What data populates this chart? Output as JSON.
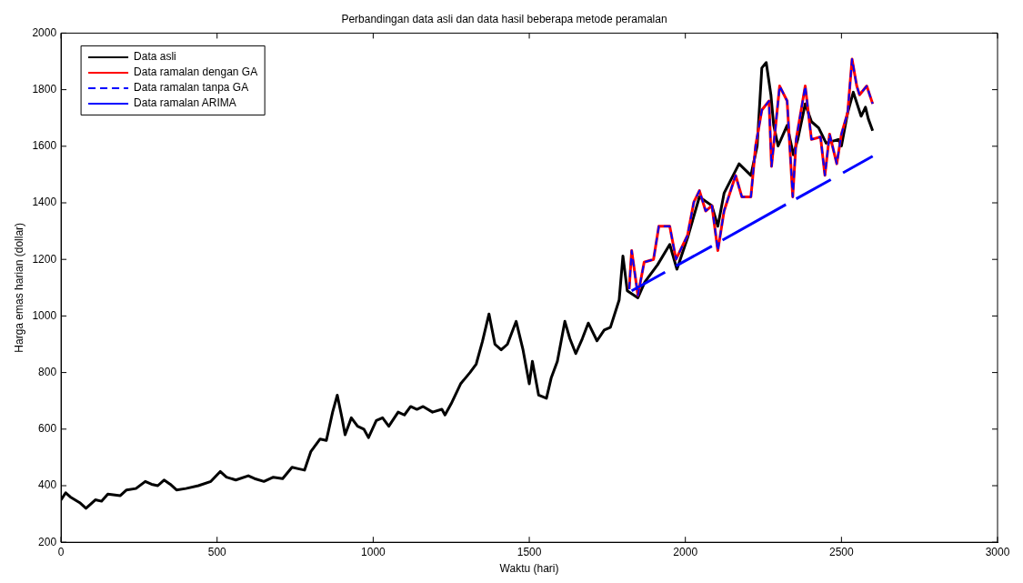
{
  "chart_data": {
    "type": "line",
    "title": "Perbandingan data asli dan data hasil beberapa metode peramalan",
    "xlabel": "Waktu (hari)",
    "ylabel": "Harga emas harian (dollar)",
    "xlim": [
      0,
      3000
    ],
    "xticks": [
      0,
      500,
      1000,
      1500,
      2000,
      2500,
      3000
    ],
    "ylim": [
      200,
      2000
    ],
    "yticks": [
      200,
      400,
      600,
      800,
      1000,
      1200,
      1400,
      1600,
      1800,
      2000
    ],
    "grid": false,
    "legend": "top left",
    "marker": "none",
    "series": [
      {
        "name": "Data asli",
        "color": "#000000",
        "line_style": "solid",
        "x": [
          0,
          15,
          30,
          60,
          80,
          110,
          130,
          150,
          190,
          210,
          240,
          270,
          290,
          310,
          330,
          350,
          370,
          400,
          440,
          480,
          510,
          530,
          560,
          600,
          620,
          650,
          680,
          710,
          740,
          760,
          780,
          800,
          830,
          850,
          870,
          885,
          900,
          910,
          930,
          950,
          970,
          985,
          1010,
          1030,
          1050,
          1080,
          1100,
          1120,
          1140,
          1160,
          1190,
          1220,
          1230,
          1250,
          1280,
          1310,
          1330,
          1350,
          1371,
          1390,
          1410,
          1430,
          1458,
          1480,
          1500,
          1510,
          1530,
          1555,
          1570,
          1590,
          1614,
          1630,
          1649,
          1670,
          1689,
          1717,
          1740,
          1760,
          1788,
          1800,
          1814,
          1848,
          1870,
          1911,
          1950,
          1973,
          2007,
          2045,
          2085,
          2104,
          2124,
          2172,
          2210,
          2230,
          2245,
          2259,
          2274,
          2283,
          2297,
          2326,
          2346,
          2360,
          2384,
          2404,
          2427,
          2451,
          2490,
          2500,
          2520,
          2538,
          2563,
          2577,
          2586,
          2600
        ],
        "values": [
          350,
          375,
          360,
          340,
          320,
          350,
          345,
          370,
          365,
          385,
          390,
          415,
          405,
          400,
          420,
          405,
          385,
          390,
          400,
          415,
          450,
          430,
          420,
          435,
          425,
          415,
          430,
          425,
          465,
          460,
          455,
          520,
          565,
          560,
          660,
          720,
          640,
          580,
          640,
          610,
          600,
          570,
          630,
          640,
          610,
          660,
          650,
          680,
          670,
          680,
          660,
          670,
          650,
          690,
          760,
          800,
          830,
          910,
          1007,
          900,
          880,
          900,
          981,
          880,
          760,
          840,
          720,
          709,
          780,
          840,
          981,
          920,
          867,
          920,
          975,
          912,
          950,
          960,
          1057,
          1212,
          1089,
          1064,
          1120,
          1181,
          1253,
          1165,
          1276,
          1421,
          1390,
          1317,
          1434,
          1538,
          1497,
          1601,
          1877,
          1896,
          1782,
          1674,
          1601,
          1674,
          1570,
          1624,
          1750,
          1687,
          1665,
          1611,
          1624,
          1601,
          1719,
          1791,
          1706,
          1738,
          1697,
          1655
        ]
      },
      {
        "name": "Data ramalan dengan GA",
        "color": "#ff0000",
        "line_style": "solid",
        "x": [
          1820,
          1828,
          1848,
          1868,
          1898,
          1915,
          1950,
          1970,
          2007,
          2027,
          2045,
          2065,
          2085,
          2104,
          2124,
          2161,
          2181,
          2210,
          2225,
          2245,
          2268,
          2276,
          2302,
          2326,
          2344,
          2355,
          2384,
          2404,
          2433,
          2447,
          2462,
          2485,
          2500,
          2520,
          2534,
          2549,
          2558,
          2581,
          2600
        ],
        "values": [
          1095,
          1231,
          1073,
          1190,
          1200,
          1317,
          1317,
          1200,
          1285,
          1402,
          1443,
          1371,
          1390,
          1231,
          1371,
          1497,
          1421,
          1421,
          1601,
          1728,
          1760,
          1529,
          1813,
          1760,
          1421,
          1624,
          1813,
          1624,
          1633,
          1497,
          1643,
          1538,
          1643,
          1719,
          1908,
          1813,
          1782,
          1813,
          1750
        ]
      },
      {
        "name": "Data ramalan tanpa GA",
        "color": "#0000ff",
        "line_style": "dashed",
        "x": [
          1820,
          1828,
          1848,
          1868,
          1898,
          1915,
          1950,
          1970,
          2007,
          2027,
          2045,
          2065,
          2085,
          2104,
          2124,
          2161,
          2181,
          2210,
          2225,
          2245,
          2268,
          2276,
          2302,
          2326,
          2344,
          2355,
          2384,
          2404,
          2433,
          2447,
          2462,
          2485,
          2500,
          2520,
          2534,
          2549,
          2558,
          2581,
          2600
        ],
        "values": [
          1095,
          1231,
          1073,
          1190,
          1200,
          1317,
          1317,
          1200,
          1285,
          1402,
          1443,
          1371,
          1390,
          1231,
          1371,
          1497,
          1421,
          1421,
          1601,
          1728,
          1760,
          1529,
          1813,
          1760,
          1421,
          1624,
          1813,
          1624,
          1633,
          1497,
          1643,
          1538,
          1643,
          1719,
          1908,
          1813,
          1782,
          1813,
          1750
        ]
      },
      {
        "name": "Data ramalan ARIMA",
        "color": "#0000ff",
        "line_style": "solid",
        "x": [
          1828,
          1935,
          1950,
          1970,
          2085,
          2100,
          2119,
          2322,
          2340,
          2355,
          2466,
          2485,
          2505,
          2600
        ],
        "values": [
          1089,
          1155,
          null,
          1177,
          1247,
          null,
          1268,
          1394,
          null,
          1414,
          1482,
          null,
          1506,
          1565
        ]
      }
    ]
  }
}
